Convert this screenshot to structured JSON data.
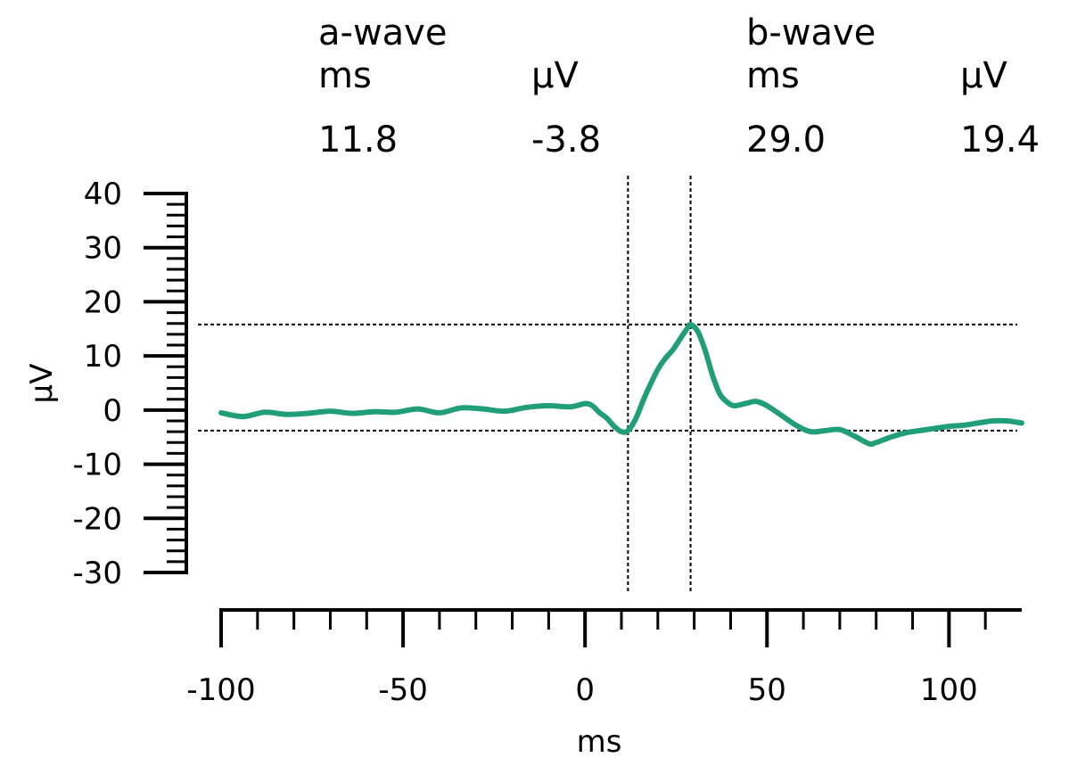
{
  "header": {
    "a_wave": {
      "title": "a-wave",
      "ms_label": "ms",
      "uv_label": "µV",
      "ms_value": "11.8",
      "uv_value": "-3.8"
    },
    "b_wave": {
      "title": "b-wave",
      "ms_label": "ms",
      "uv_label": "µV",
      "ms_value": "29.0",
      "uv_value": "19.4"
    }
  },
  "chart_data": {
    "type": "line",
    "title": "",
    "xlabel": "ms",
    "ylabel": "µV",
    "xlim": [
      -100,
      120
    ],
    "ylim": [
      -30,
      40
    ],
    "x_ticks": [
      -100,
      -50,
      0,
      50,
      100
    ],
    "x_tick_labels": [
      "-100",
      "-50",
      "0",
      "50",
      "100"
    ],
    "x_minor_step": 10,
    "y_ticks": [
      40,
      30,
      20,
      10,
      0,
      -10,
      -20,
      -30
    ],
    "y_tick_labels": [
      "40",
      "30",
      "20",
      "10",
      "0",
      "-10",
      "-20",
      "-30"
    ],
    "y_minor_step": 2,
    "grid": false,
    "series_color": "#1f9e78",
    "series": [
      {
        "x": [
          -100,
          -94,
          -88,
          -82,
          -76,
          -70,
          -64,
          -58,
          -52,
          -46,
          -40,
          -34,
          -28,
          -22,
          -16,
          -10,
          -4,
          0,
          2,
          4,
          6,
          8,
          10,
          11.8,
          14,
          16,
          18,
          20,
          22,
          24,
          26,
          28,
          29.0,
          31,
          33,
          35,
          37,
          39,
          41,
          44,
          47,
          50,
          54,
          58,
          62,
          66,
          70,
          74,
          78,
          80,
          84,
          88,
          92,
          96,
          100,
          104,
          108,
          112,
          116,
          120
        ],
        "y": [
          -0.5,
          -1.2,
          -0.4,
          -0.8,
          -0.6,
          -0.2,
          -0.6,
          -0.3,
          -0.4,
          0.2,
          -0.5,
          0.4,
          0.2,
          -0.2,
          0.5,
          0.8,
          0.6,
          1.2,
          0.8,
          -0.5,
          -1.5,
          -3.0,
          -4.0,
          -3.8,
          -1.5,
          1.8,
          4.8,
          7.5,
          9.5,
          11.0,
          13.0,
          15.0,
          15.8,
          14.5,
          11.0,
          6.5,
          3.0,
          1.5,
          0.8,
          1.2,
          1.6,
          0.8,
          -1.0,
          -2.8,
          -4.0,
          -3.8,
          -3.6,
          -4.8,
          -6.2,
          -6.0,
          -5.0,
          -4.2,
          -3.8,
          -3.4,
          -3.0,
          -2.8,
          -2.4,
          -2.0,
          -2.0,
          -2.4
        ]
      }
    ],
    "markers": {
      "a_wave": {
        "x": 11.8,
        "y": -3.8
      },
      "b_wave": {
        "x": 29.0,
        "y": 15.8
      }
    }
  }
}
